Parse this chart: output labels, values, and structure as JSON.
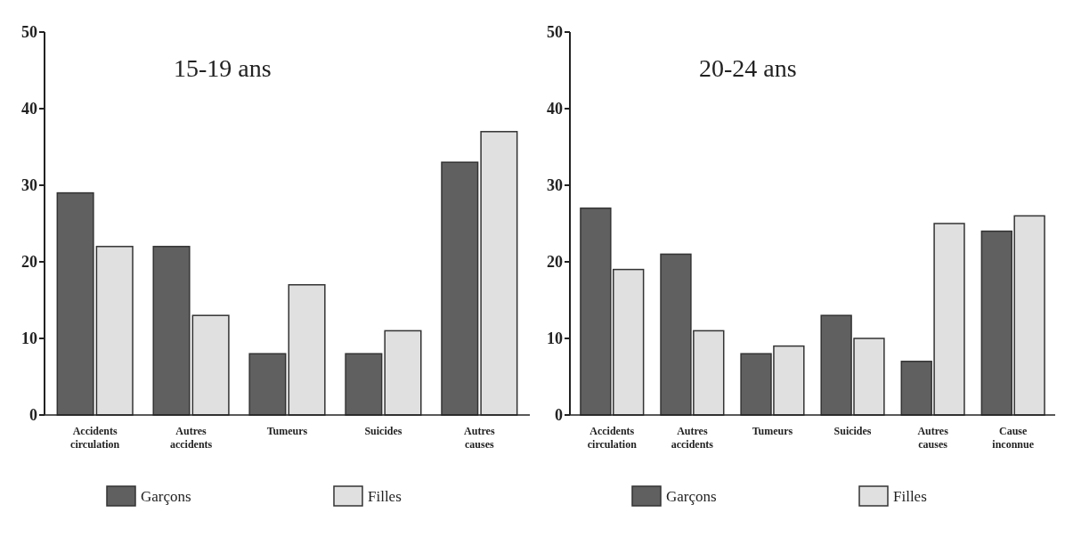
{
  "chart_data": [
    {
      "type": "bar",
      "title": "15-19 ans",
      "categories": [
        "Accidents circulation",
        "Autres accidents",
        "Tumeurs",
        "Suicides",
        "Autres causes"
      ],
      "series": [
        {
          "name": "Garçons",
          "color": "#606060",
          "values": [
            29,
            22,
            8,
            8,
            33
          ]
        },
        {
          "name": "Filles",
          "color": "#e0e0e0",
          "values": [
            22,
            13,
            17,
            11,
            37
          ]
        }
      ],
      "ylim": [
        0,
        50
      ],
      "yticks": [
        0,
        10,
        20,
        30,
        40,
        50
      ],
      "legend": "bottom"
    },
    {
      "type": "bar",
      "title": "20-24 ans",
      "categories": [
        "Accidents circulation",
        "Autres accidents",
        "Tumeurs",
        "Suicides",
        "Autres causes",
        "Cause inconnue"
      ],
      "series": [
        {
          "name": "Garçons",
          "color": "#606060",
          "values": [
            27,
            21,
            8,
            13,
            7,
            24
          ]
        },
        {
          "name": "Filles",
          "color": "#e0e0e0",
          "values": [
            19,
            11,
            9,
            10,
            25,
            26
          ]
        }
      ],
      "ylim": [
        0,
        50
      ],
      "yticks": [
        0,
        10,
        20,
        30,
        40,
        50
      ],
      "legend": "bottom"
    }
  ]
}
